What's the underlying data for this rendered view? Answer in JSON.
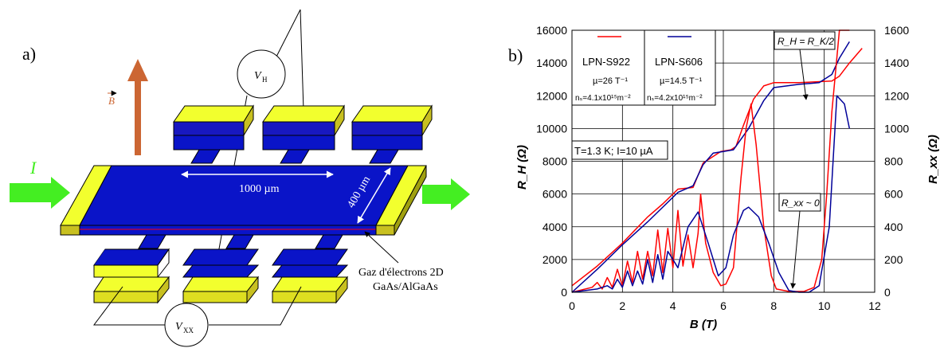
{
  "panel_a": {
    "label": "a)",
    "current_label": "I",
    "field_label": "B",
    "vh_label": {
      "main": "V",
      "sub": "H"
    },
    "vxx_label": {
      "main": "V",
      "sub": "XX"
    },
    "length_label": "1000 µm",
    "width_label": "400 µm",
    "gas_label_line1": "Gaz d'électrons 2D",
    "gas_label_line2": "GaAs/AlGaAs",
    "colors": {
      "channel": "#0a14c8",
      "contact": "#f2ff2e",
      "arrow_current": "#44ee22",
      "arrow_field": "#cc6633",
      "edge": "#cc0033"
    }
  },
  "panel_b": {
    "label": "b)",
    "legend": [
      {
        "name": "LPN-S922",
        "mobility": "µ=26 T⁻¹",
        "density": "nₛ=4.1x10¹⁵m⁻²",
        "color": "#ff0000"
      },
      {
        "name": "LPN-S606",
        "mobility": "µ=14.5 T⁻¹",
        "density": "nₛ=4.2x10¹⁵m⁻²",
        "color": "#000099"
      }
    ],
    "conditions": "T=1.3 K; I=10 µA",
    "annotation_plateau": "R_H = R_K/2",
    "annotation_zero": "R_xx ~ 0",
    "x_label": "B (T)",
    "y_left_label": "R_H (Ω)",
    "y_right_label": "R_xx (Ω)"
  },
  "chart_data": {
    "type": "line",
    "xlabel": "B (T)",
    "ylabel": "R_H (Ω)",
    "y2label": "R_xx (Ω)",
    "xlim": [
      0,
      12
    ],
    "ylim": [
      0,
      16000
    ],
    "y2lim": [
      0,
      1600
    ],
    "xticks": [
      "0",
      "2",
      "4",
      "6",
      "8",
      "10",
      "12"
    ],
    "yticks": [
      "0",
      "2000",
      "4000",
      "6000",
      "8000",
      "10000",
      "12000",
      "14000",
      "16000"
    ],
    "y2ticks": [
      "0",
      "200",
      "400",
      "600",
      "800",
      "1000",
      "1200",
      "1400",
      "1600"
    ],
    "grid": true,
    "series": [
      {
        "name": "LPN-S922",
        "color": "#ff0000",
        "axis": "left",
        "x": [
          0,
          1,
          2,
          3,
          3.6,
          4.2,
          4.8,
          5.2,
          5.9,
          6.3,
          6.5,
          6.8,
          7.2,
          7.6,
          8,
          9,
          10.3,
          10.6,
          11,
          11.5
        ],
        "y": [
          400,
          1600,
          3000,
          4600,
          5400,
          6300,
          6400,
          7900,
          8600,
          8700,
          8900,
          10200,
          11800,
          12600,
          12800,
          12800,
          12900,
          13200,
          14000,
          14900
        ]
      },
      {
        "name": "LPN-S606",
        "color": "#000099",
        "axis": "left",
        "x": [
          0,
          1,
          2,
          3,
          3.6,
          4.2,
          4.8,
          5.2,
          5.6,
          6,
          6.4,
          7,
          7.6,
          8,
          9,
          9.8,
          10.3,
          10.6,
          11
        ],
        "y": [
          0,
          1400,
          2900,
          4300,
          5200,
          6100,
          6500,
          7800,
          8500,
          8600,
          8700,
          10000,
          11700,
          12500,
          12700,
          12800,
          13300,
          14300,
          15300
        ]
      },
      {
        "name": "LPN-S922",
        "color": "#ff0000",
        "axis": "right",
        "x": [
          0,
          0.8,
          1.0,
          1.2,
          1.4,
          1.6,
          1.8,
          2.0,
          2.2,
          2.4,
          2.6,
          2.8,
          3.0,
          3.2,
          3.4,
          3.6,
          3.8,
          4.0,
          4.2,
          4.4,
          4.6,
          4.8,
          5.0,
          5.1,
          5.3,
          5.6,
          5.9,
          6.1,
          6.4,
          6.7,
          6.9,
          7.1,
          7.3,
          7.6,
          7.9,
          8.1,
          8.6,
          9.2,
          9.6,
          9.9,
          10.1,
          10.3,
          10.6,
          11.0
        ],
        "y": [
          0,
          30,
          60,
          20,
          90,
          30,
          140,
          40,
          190,
          60,
          250,
          80,
          250,
          100,
          380,
          120,
          390,
          150,
          500,
          160,
          350,
          150,
          360,
          600,
          300,
          120,
          40,
          50,
          150,
          700,
          1000,
          1150,
          900,
          400,
          100,
          20,
          5,
          5,
          30,
          200,
          600,
          1100,
          1600,
          2000
        ]
      },
      {
        "name": "LPN-S606",
        "color": "#000099",
        "axis": "right",
        "x": [
          0,
          1.0,
          1.4,
          1.6,
          1.8,
          2.0,
          2.2,
          2.4,
          2.6,
          2.8,
          3.0,
          3.2,
          3.4,
          3.6,
          3.8,
          4.0,
          4.2,
          4.6,
          5.0,
          5.4,
          5.8,
          6.1,
          6.4,
          6.8,
          7.0,
          7.4,
          7.8,
          8.2,
          8.6,
          9.0,
          9.4,
          9.8,
          10.2,
          10.5,
          10.8,
          11.0
        ],
        "y": [
          0,
          20,
          40,
          20,
          80,
          30,
          130,
          40,
          130,
          50,
          200,
          60,
          230,
          80,
          250,
          200,
          150,
          400,
          490,
          300,
          100,
          150,
          350,
          500,
          520,
          460,
          300,
          120,
          10,
          0,
          0,
          40,
          400,
          1200,
          1150,
          1000
        ]
      }
    ]
  }
}
